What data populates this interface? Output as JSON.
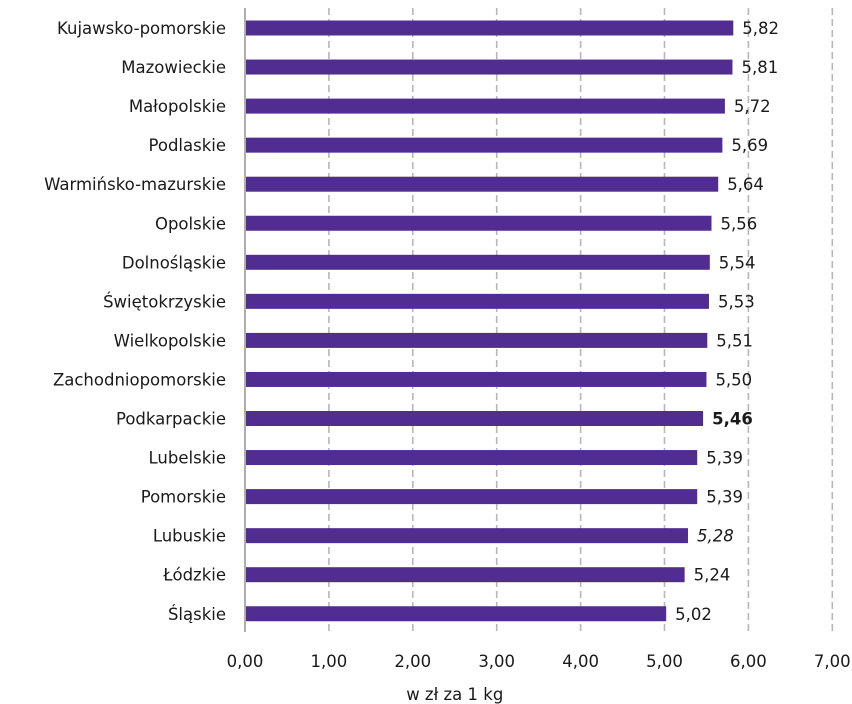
{
  "chart_data": {
    "type": "bar",
    "orientation": "horizontal",
    "categories": [
      "Kujawsko-pomorskie",
      "Mazowieckie",
      "Małopolskie",
      "Podlaskie",
      "Warmińsko-mazurskie",
      "Opolskie",
      "Dolnośląskie",
      "Świętokrzyskie",
      "Wielkopolskie",
      "Zachodniopomorskie",
      "Podkarpackie",
      "Lubelskie",
      "Pomorskie",
      "Lubuskie",
      "Łódzkie",
      "Śląskie"
    ],
    "values": [
      5.82,
      5.81,
      5.72,
      5.69,
      5.64,
      5.56,
      5.54,
      5.53,
      5.51,
      5.5,
      5.46,
      5.39,
      5.39,
      5.28,
      5.24,
      5.02
    ],
    "value_labels": [
      "5,82",
      "5,81",
      "5,72",
      "5,69",
      "5,64",
      "5,56",
      "5,54",
      "5,53",
      "5,51",
      "5,50",
      "5,46",
      "5,39",
      "5,39",
      "5,28",
      "5,24",
      "5,02"
    ],
    "emphasis": {
      "bold_index": 10,
      "italic_index": 13
    },
    "xlabel": "w zł za 1 kg",
    "xlim": [
      0,
      7
    ],
    "xticks": [
      "0,00",
      "1,00",
      "2,00",
      "3,00",
      "4,00",
      "5,00",
      "6,00",
      "7,00"
    ],
    "grid": true,
    "bar_color": "#522d91"
  }
}
